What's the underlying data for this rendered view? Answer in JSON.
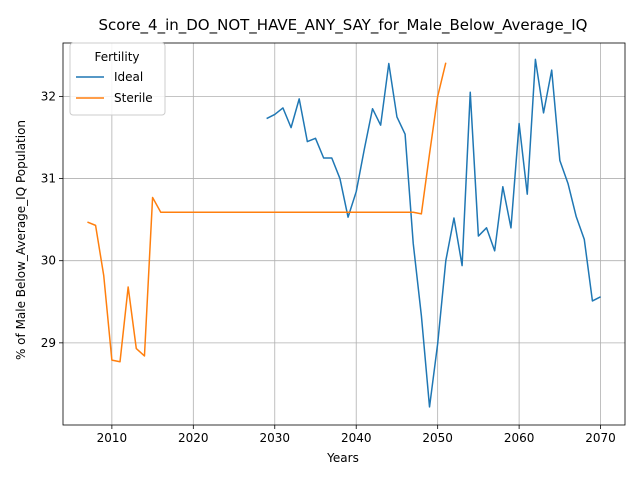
{
  "chart_data": {
    "type": "line",
    "title": "Score_4_in_DO_NOT_HAVE_ANY_SAY_for_Male_Below_Average_IQ",
    "xlabel": "Years",
    "ylabel": "% of Male Below_Average_IQ Population",
    "xlim": [
      2004,
      2073
    ],
    "ylim": [
      28.0,
      32.65
    ],
    "xticks": [
      2010,
      2020,
      2030,
      2040,
      2050,
      2060,
      2070
    ],
    "yticks": [
      29,
      30,
      31,
      32
    ],
    "grid": true,
    "legend": {
      "title": "Fertility",
      "placement": "upper-left"
    },
    "series": [
      {
        "name": "Ideal",
        "color": "#1f77b4",
        "x": [
          2029,
          2030,
          2031,
          2032,
          2033,
          2034,
          2035,
          2036,
          2037,
          2038,
          2039,
          2040,
          2041,
          2042,
          2043,
          2044,
          2045,
          2046,
          2047,
          2048,
          2049,
          2050,
          2051,
          2052,
          2053,
          2054,
          2055,
          2056,
          2057,
          2058,
          2059,
          2060,
          2061,
          2062,
          2063,
          2064,
          2065,
          2066,
          2067,
          2068,
          2069,
          2070
        ],
        "y": [
          31.73,
          31.78,
          31.86,
          31.62,
          31.97,
          31.45,
          31.49,
          31.25,
          31.25,
          31.0,
          30.53,
          30.84,
          31.36,
          31.85,
          31.65,
          32.4,
          31.75,
          31.54,
          30.21,
          29.33,
          28.22,
          28.99,
          30.0,
          30.52,
          29.94,
          32.05,
          30.3,
          30.4,
          30.12,
          30.9,
          30.4,
          31.67,
          30.81,
          32.45,
          31.8,
          32.32,
          31.22,
          30.94,
          30.54,
          30.26,
          29.51,
          29.56
        ]
      },
      {
        "name": "Sterile",
        "color": "#ff7f0e",
        "x": [
          2007,
          2008,
          2009,
          2010,
          2011,
          2012,
          2013,
          2014,
          2015,
          2016,
          2017,
          2018,
          2019,
          2020,
          2021,
          2022,
          2023,
          2024,
          2025,
          2026,
          2027,
          2028,
          2029,
          2030,
          2031,
          2032,
          2033,
          2034,
          2035,
          2036,
          2037,
          2038,
          2039,
          2040,
          2041,
          2042,
          2043,
          2044,
          2045,
          2046,
          2047,
          2048,
          2049,
          2050,
          2051
        ],
        "y": [
          30.47,
          30.43,
          29.82,
          28.79,
          28.77,
          29.68,
          28.93,
          28.84,
          30.77,
          30.59,
          30.59,
          30.59,
          30.59,
          30.59,
          30.59,
          30.59,
          30.59,
          30.59,
          30.59,
          30.59,
          30.59,
          30.59,
          30.59,
          30.59,
          30.59,
          30.59,
          30.59,
          30.59,
          30.59,
          30.59,
          30.59,
          30.59,
          30.59,
          30.59,
          30.59,
          30.59,
          30.59,
          30.59,
          30.59,
          30.59,
          30.59,
          30.57,
          31.3,
          32.0,
          32.41
        ]
      }
    ]
  }
}
